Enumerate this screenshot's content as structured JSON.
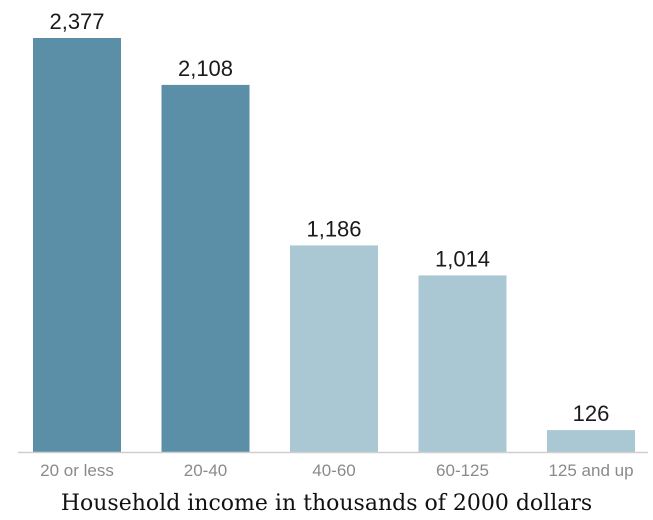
{
  "chart_data": {
    "type": "bar",
    "categories": [
      "20 or less",
      "20-40",
      "40-60",
      "60-125",
      "125 and up"
    ],
    "values": [
      2377,
      2108,
      1186,
      1014,
      126
    ],
    "value_labels": [
      "2,377",
      "2,108",
      "1,186",
      "1,014",
      "126"
    ],
    "title": "",
    "xlabel": "Household income in thousands of 2000 dollars",
    "ylabel": "",
    "ylim": [
      0,
      2377
    ],
    "grid": false,
    "legend": "none",
    "colors": [
      "#5b8fa8",
      "#5b8fa8",
      "#aac7d4",
      "#aac7d4",
      "#aac7d4"
    ]
  }
}
